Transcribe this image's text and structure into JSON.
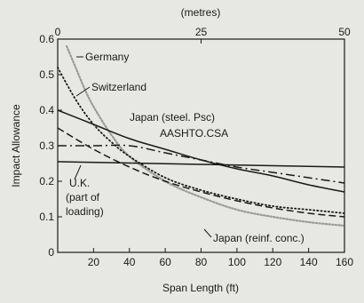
{
  "chart_data": {
    "type": "line",
    "title": "",
    "xlabel": "Span Length (ft)",
    "ylabel": "Impact Allowance",
    "x2label": "(metres)",
    "xlim": [
      0,
      160
    ],
    "ylim": [
      0,
      0.6
    ],
    "x_ticks": [
      20,
      40,
      60,
      80,
      100,
      120,
      140,
      160
    ],
    "y_ticks": [
      0,
      0.1,
      0.2,
      0.3,
      0.4,
      0.5,
      0.6
    ],
    "x2_ticks": [
      0,
      25,
      50
    ],
    "grid": false,
    "legend": "curve labels placed directly on the chart",
    "series": [
      {
        "name": "Germany",
        "style": "dotted-light",
        "color": "#9a9a9a",
        "x": [
          5,
          10,
          15,
          20,
          30,
          40,
          60,
          80,
          100,
          120,
          140,
          160
        ],
        "y": [
          0.58,
          0.52,
          0.46,
          0.41,
          0.33,
          0.27,
          0.2,
          0.155,
          0.12,
          0.1,
          0.085,
          0.075
        ]
      },
      {
        "name": "Switzerland",
        "style": "dotted",
        "color": "#1a1a1a",
        "x": [
          0,
          10,
          20,
          30,
          40,
          60,
          80,
          100,
          120,
          140,
          160
        ],
        "y": [
          0.52,
          0.43,
          0.36,
          0.31,
          0.27,
          0.21,
          0.175,
          0.15,
          0.13,
          0.12,
          0.11
        ]
      },
      {
        "name": "Japan (steel, Psc)",
        "style": "solid",
        "color": "#1a1a1a",
        "x": [
          0,
          20,
          40,
          60,
          80,
          100,
          120,
          140,
          160
        ],
        "y": [
          0.4,
          0.36,
          0.32,
          0.29,
          0.26,
          0.235,
          0.215,
          0.19,
          0.17
        ]
      },
      {
        "name": "AASHTO,CSA",
        "style": "dash-dot",
        "color": "#1a1a1a",
        "x": [
          0,
          20,
          40,
          60,
          80,
          100,
          120,
          140,
          160
        ],
        "y": [
          0.3,
          0.3,
          0.3,
          0.28,
          0.26,
          0.24,
          0.225,
          0.21,
          0.195
        ]
      },
      {
        "name": "U.K. (part of loading)",
        "style": "solid",
        "color": "#1a1a1a",
        "x": [
          0,
          160
        ],
        "y": [
          0.255,
          0.24
        ]
      },
      {
        "name": "Japan (reinf. conc.)",
        "style": "dashed",
        "color": "#1a1a1a",
        "x": [
          0,
          20,
          40,
          60,
          80,
          100,
          120,
          140,
          160
        ],
        "y": [
          0.35,
          0.29,
          0.24,
          0.2,
          0.17,
          0.145,
          0.125,
          0.11,
          0.1
        ]
      }
    ],
    "annotations": [
      "Germany",
      "Switzerland",
      "Japan (steel. Psc)",
      "AASHTO.CSA",
      "U.K.",
      "(part of",
      "loading)",
      "Japan (reinf. conc.)"
    ]
  }
}
